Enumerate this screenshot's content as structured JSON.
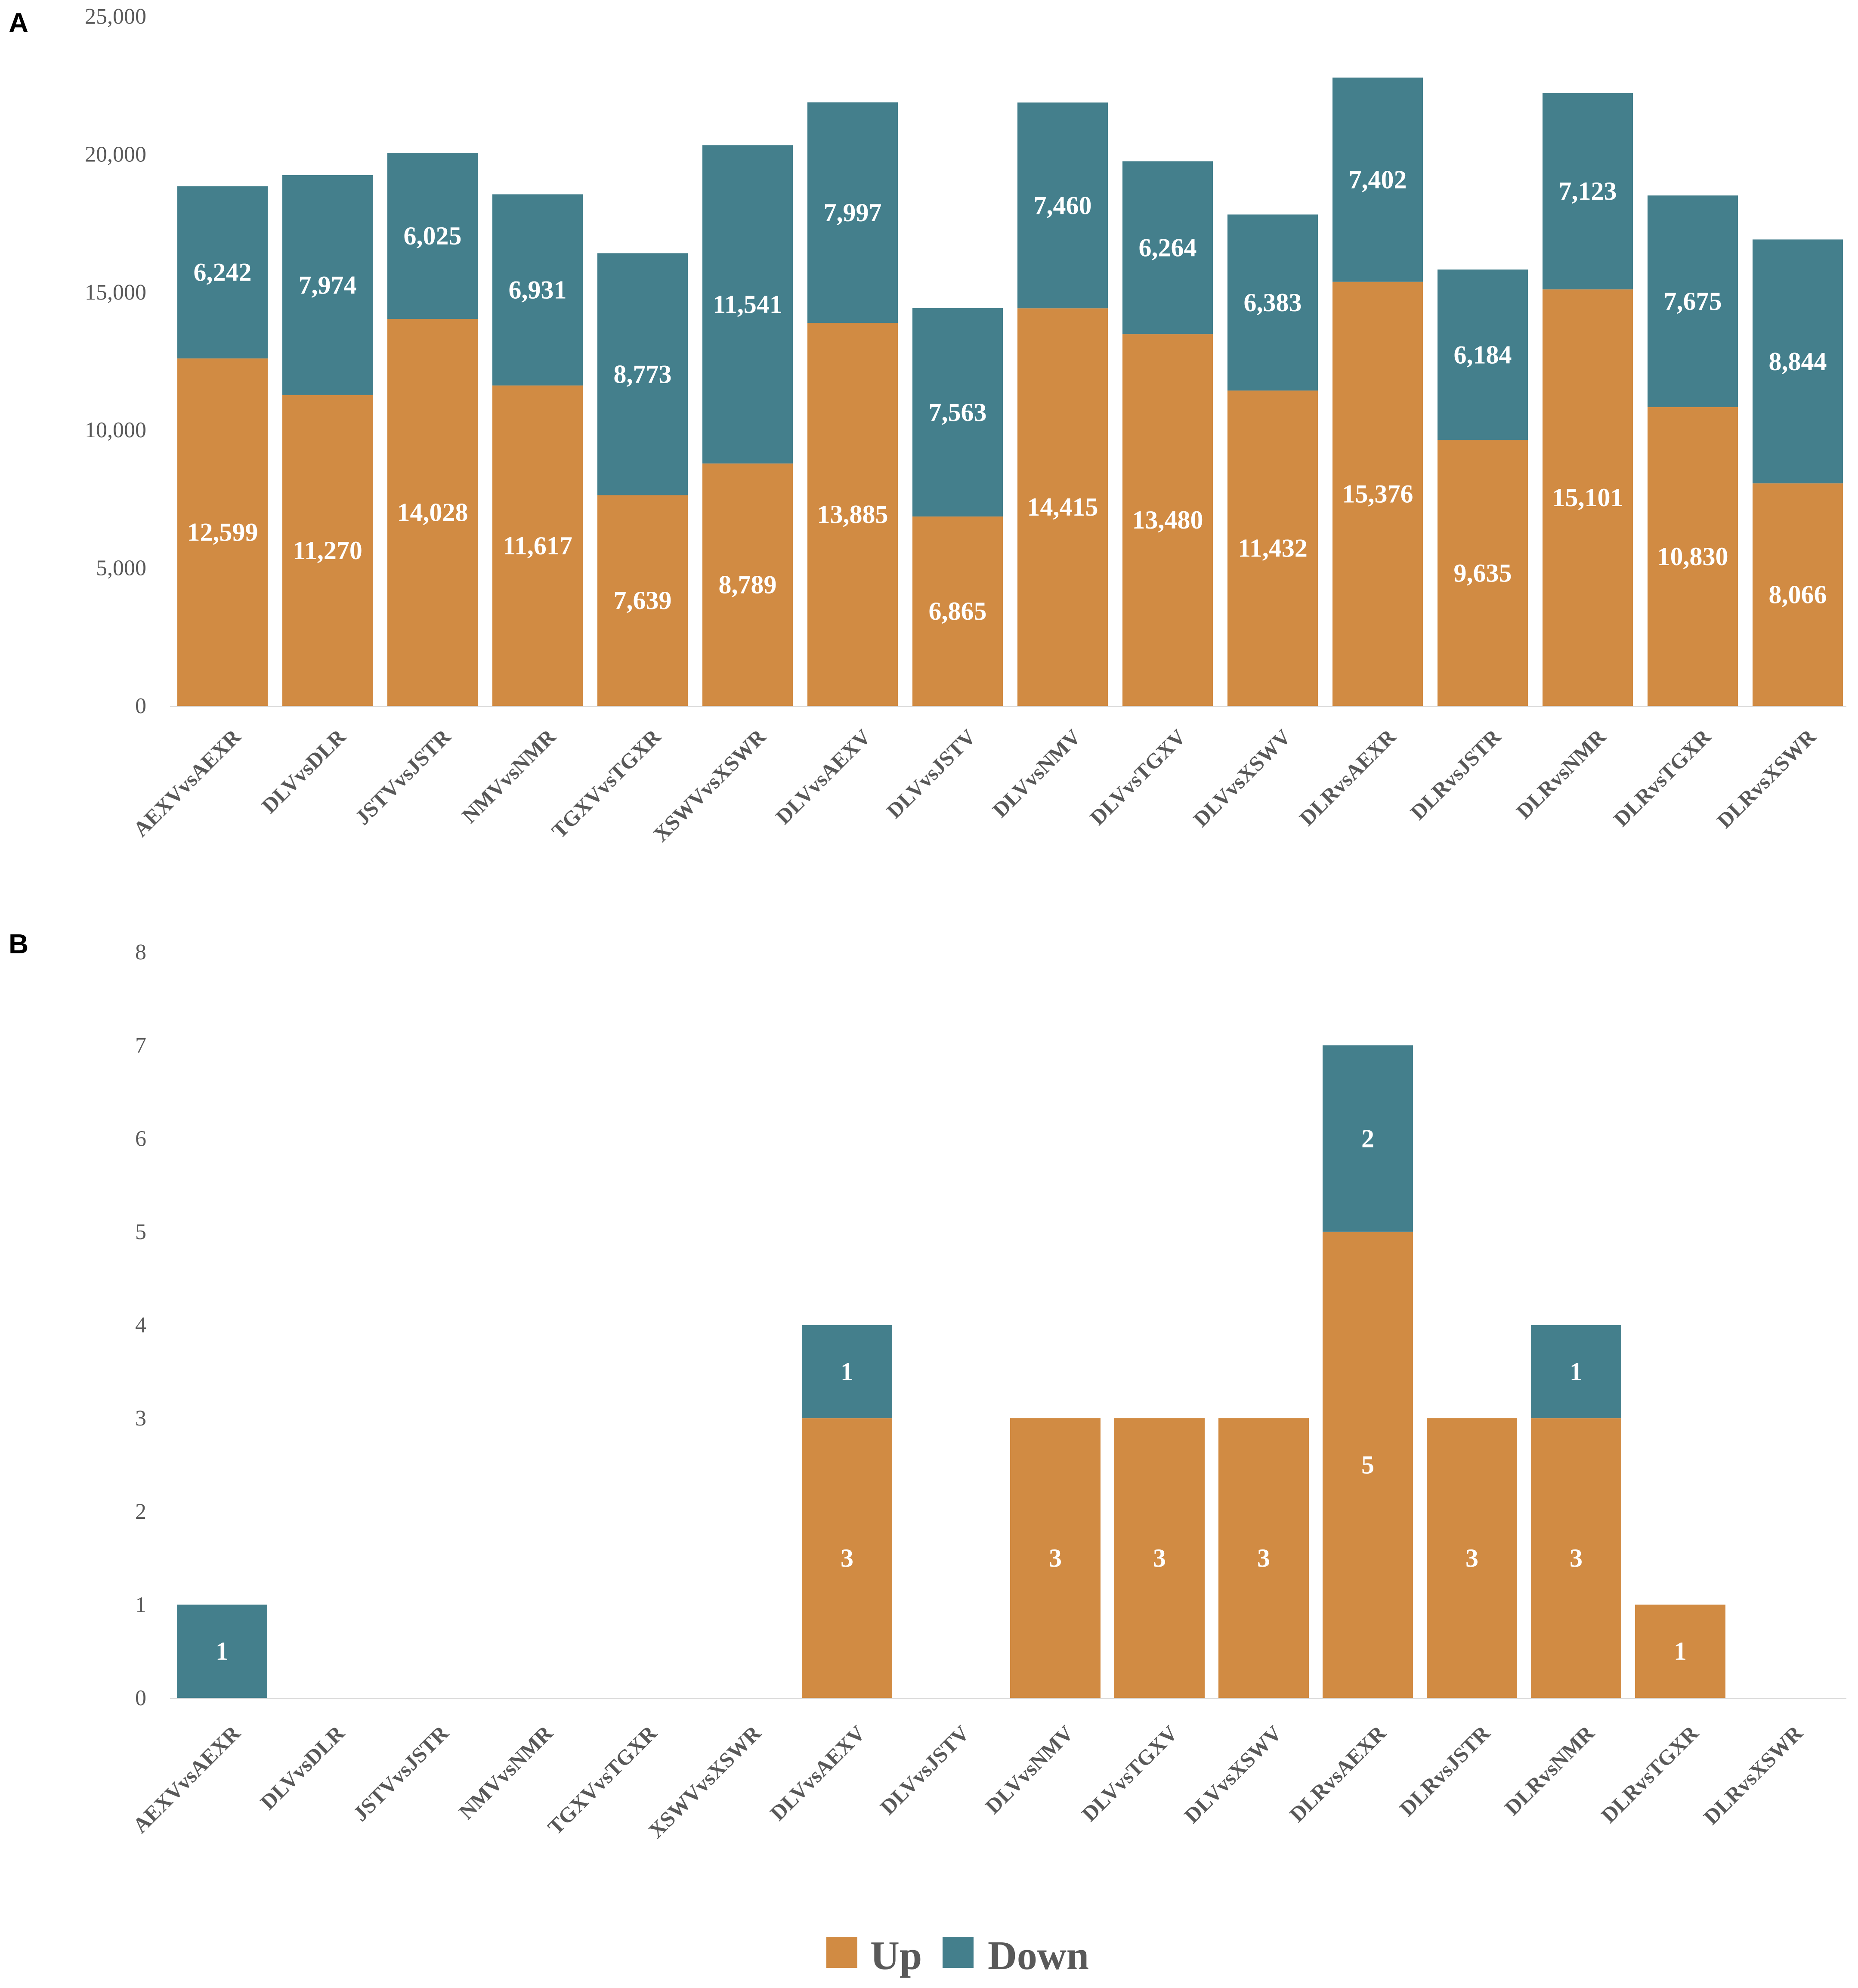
{
  "chart_data": [
    {
      "panel": "A",
      "type": "bar",
      "stacked": true,
      "categories": [
        "AEXVvsAEXR",
        "DLVvsDLR",
        "JSTVvsJSTR",
        "NMVvsNMR",
        "TGXVvsTGXR",
        "XSWVvsXSWR",
        "DLVvsAEXV",
        "DLVvsJSTV",
        "DLVvsNMV",
        "DLVvsTGXV",
        "DLVvsXSWV",
        "DLRvsAEXR",
        "DLRvsJSTR",
        "DLRvsNMR",
        "DLRvsTGXR",
        "DLRvsXSWR"
      ],
      "series": [
        {
          "name": "Up",
          "color": "#D18B43",
          "values": [
            12599,
            11270,
            14028,
            11617,
            7639,
            8789,
            13885,
            6865,
            14415,
            13480,
            11432,
            15376,
            9635,
            15101,
            10830,
            8066
          ]
        },
        {
          "name": "Down",
          "color": "#447F8C",
          "values": [
            6242,
            7974,
            6025,
            6931,
            8773,
            11541,
            7997,
            7563,
            7460,
            6264,
            6383,
            7402,
            6184,
            7123,
            7675,
            8844
          ]
        }
      ],
      "ylim": [
        0,
        25000
      ],
      "yticks": [
        0,
        5000,
        10000,
        15000,
        20000,
        25000
      ],
      "ytick_labels": [
        "0",
        "5,000",
        "10,000",
        "15,000",
        "20,000",
        "25,000"
      ],
      "title": "",
      "xlabel": "",
      "ylabel": ""
    },
    {
      "panel": "B",
      "type": "bar",
      "stacked": true,
      "categories": [
        "AEXVvsAEXR",
        "DLVvsDLR",
        "JSTVvsJSTR",
        "NMVvsNMR",
        "TGXVvsTGXR",
        "XSWVvsXSWR",
        "DLVvsAEXV",
        "DLVvsJSTV",
        "DLVvsNMV",
        "DLVvsTGXV",
        "DLVvsXSWV",
        "DLRvsAEXR",
        "DLRvsJSTR",
        "DLRvsNMR",
        "DLRvsTGXR",
        "DLRvsXSWR"
      ],
      "series": [
        {
          "name": "Up",
          "color": "#D18B43",
          "values": [
            0,
            0,
            0,
            0,
            0,
            0,
            3,
            0,
            3,
            3,
            3,
            5,
            3,
            3,
            1,
            0
          ]
        },
        {
          "name": "Down",
          "color": "#447F8C",
          "values": [
            1,
            0,
            0,
            0,
            0,
            0,
            1,
            0,
            0,
            0,
            0,
            2,
            0,
            1,
            0,
            0
          ]
        }
      ],
      "ylim": [
        0,
        8
      ],
      "yticks": [
        0,
        1,
        2,
        3,
        4,
        5,
        6,
        7,
        8
      ],
      "ytick_labels": [
        "0",
        "1",
        "2",
        "3",
        "4",
        "5",
        "6",
        "7",
        "8"
      ],
      "title": "",
      "xlabel": "",
      "ylabel": ""
    }
  ],
  "legend": [
    {
      "label": "Up",
      "color": "#D18B43"
    },
    {
      "label": "Down",
      "color": "#447F8C"
    }
  ]
}
